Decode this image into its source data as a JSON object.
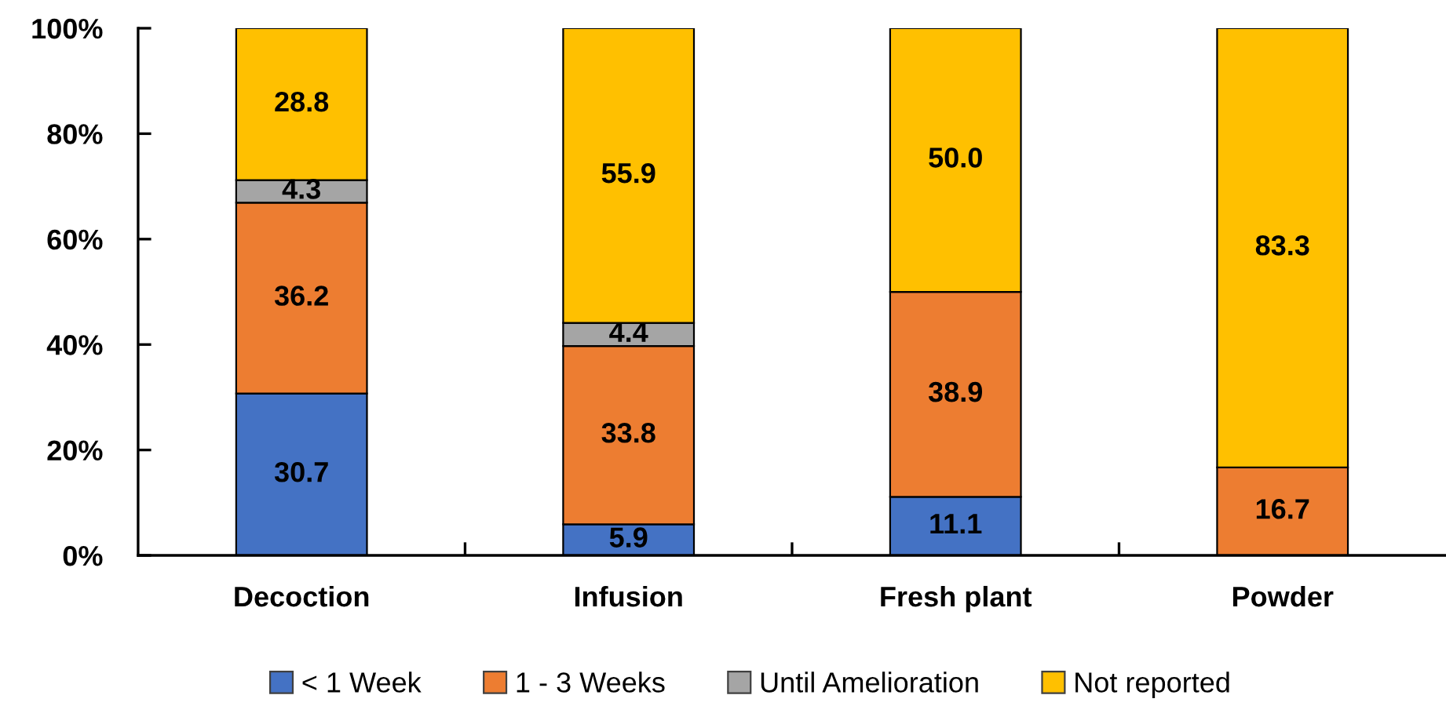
{
  "chart_data": {
    "type": "bar",
    "stacked": true,
    "categories": [
      "Decoction",
      "Infusion",
      "Fresh plant",
      "Powder"
    ],
    "series": [
      {
        "name": "< 1 Week",
        "color": "#4472c4",
        "values": [
          30.7,
          5.9,
          11.1,
          null
        ],
        "value_labels": [
          "30.7",
          "5.9",
          "11.1",
          null
        ]
      },
      {
        "name": "1 - 3 Weeks",
        "color": "#ed7d31",
        "values": [
          36.2,
          33.8,
          38.9,
          16.7
        ],
        "value_labels": [
          "36.2",
          "33.8",
          "38.9",
          "16.7"
        ]
      },
      {
        "name": "Until Amelioration",
        "color": "#a5a5a5",
        "values": [
          4.3,
          4.4,
          null,
          null
        ],
        "value_labels": [
          "4.3",
          "4.4",
          null,
          null
        ]
      },
      {
        "name": "Not reported",
        "color": "#ffc000",
        "values": [
          28.8,
          55.9,
          50.0,
          83.3
        ],
        "value_labels": [
          "28.8",
          "55.9",
          "50.0",
          "83.3"
        ]
      }
    ],
    "ylim": [
      0,
      100
    ],
    "yticks": [
      {
        "value": 0,
        "label": "0%"
      },
      {
        "value": 20,
        "label": "20%"
      },
      {
        "value": 40,
        "label": "40%"
      },
      {
        "value": 60,
        "label": "60%"
      },
      {
        "value": 80,
        "label": "80%"
      },
      {
        "value": 100,
        "label": "100%"
      }
    ],
    "legend": "bottom"
  }
}
